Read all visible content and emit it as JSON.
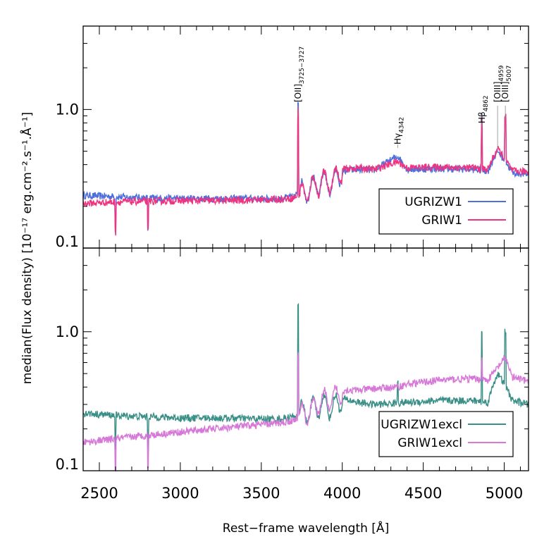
{
  "chart_data": {
    "type": "line",
    "shared_axes": {
      "xlabel": "Rest−frame wavelength [Å]",
      "ylabel": "median(Flux density) [10⁻¹⁷ erg.cm⁻².s⁻¹.Å⁻¹]",
      "xlim": [
        2400,
        5150
      ],
      "ylim": [
        0.1,
        4.0
      ],
      "yscale": "log",
      "x_ticks": [
        "2500",
        "3000",
        "3500",
        "4000",
        "4500",
        "5000"
      ],
      "y_ticks": [
        "0.1",
        "1.0"
      ]
    },
    "panels": [
      {
        "id": "top",
        "legend_placement": "lower-right",
        "series": [
          {
            "name": "UGRIZW1",
            "color": "#4e6fdc",
            "points": [
              [
                2400,
                0.24
              ],
              [
                2600,
                0.235
              ],
              [
                2800,
                0.23
              ],
              [
                3000,
                0.228
              ],
              [
                3200,
                0.228
              ],
              [
                3400,
                0.228
              ],
              [
                3600,
                0.226
              ],
              [
                3700,
                0.235
              ],
              [
                3727,
                1.15
              ],
              [
                3760,
                0.26
              ],
              [
                3800,
                0.27
              ],
              [
                3870,
                0.3
              ],
              [
                3950,
                0.3
              ],
              [
                4000,
                0.36
              ],
              [
                4100,
                0.37
              ],
              [
                4200,
                0.365
              ],
              [
                4342,
                0.46
              ],
              [
                4400,
                0.37
              ],
              [
                4600,
                0.375
              ],
              [
                4800,
                0.37
              ],
              [
                4862,
                0.88
              ],
              [
                4900,
                0.36
              ],
              [
                4959,
                0.5
              ],
              [
                5007,
                0.92
              ],
              [
                5050,
                0.35
              ],
              [
                5150,
                0.34
              ]
            ]
          },
          {
            "name": "GRIW1",
            "color": "#f0327f",
            "points": [
              [
                2400,
                0.21
              ],
              [
                2600,
                0.215
              ],
              [
                2800,
                0.218
              ],
              [
                3000,
                0.22
              ],
              [
                3200,
                0.22
              ],
              [
                3400,
                0.222
              ],
              [
                3600,
                0.225
              ],
              [
                3700,
                0.23
              ],
              [
                3727,
                1.0
              ],
              [
                3760,
                0.25
              ],
              [
                3800,
                0.27
              ],
              [
                3870,
                0.3
              ],
              [
                3950,
                0.31
              ],
              [
                4000,
                0.37
              ],
              [
                4100,
                0.38
              ],
              [
                4200,
                0.37
              ],
              [
                4342,
                0.42
              ],
              [
                4400,
                0.38
              ],
              [
                4600,
                0.385
              ],
              [
                4800,
                0.38
              ],
              [
                4862,
                0.85
              ],
              [
                4900,
                0.37
              ],
              [
                4959,
                0.52
              ],
              [
                5007,
                0.88
              ],
              [
                5050,
                0.36
              ],
              [
                5150,
                0.355
              ]
            ]
          }
        ]
      },
      {
        "id": "bottom",
        "legend_placement": "lower-right",
        "series": [
          {
            "name": "UGRIZW1excl",
            "color": "#3a8f87",
            "points": [
              [
                2400,
                0.26
              ],
              [
                2600,
                0.25
              ],
              [
                2800,
                0.245
              ],
              [
                3000,
                0.24
              ],
              [
                3200,
                0.24
              ],
              [
                3400,
                0.238
              ],
              [
                3600,
                0.235
              ],
              [
                3700,
                0.245
              ],
              [
                3727,
                1.5
              ],
              [
                3760,
                0.27
              ],
              [
                3800,
                0.27
              ],
              [
                3870,
                0.3
              ],
              [
                3950,
                0.29
              ],
              [
                4000,
                0.33
              ],
              [
                4100,
                0.31
              ],
              [
                4200,
                0.3
              ],
              [
                4342,
                0.45
              ],
              [
                4400,
                0.31
              ],
              [
                4600,
                0.32
              ],
              [
                4800,
                0.32
              ],
              [
                4862,
                1.0
              ],
              [
                4900,
                0.31
              ],
              [
                4959,
                0.5
              ],
              [
                5007,
                1.0
              ],
              [
                5050,
                0.32
              ],
              [
                5150,
                0.3
              ]
            ]
          },
          {
            "name": "GRIW1excl",
            "color": "#d678d8",
            "points": [
              [
                2400,
                0.16
              ],
              [
                2600,
                0.17
              ],
              [
                2800,
                0.18
              ],
              [
                3000,
                0.19
              ],
              [
                3200,
                0.2
              ],
              [
                3400,
                0.21
              ],
              [
                3600,
                0.22
              ],
              [
                3700,
                0.23
              ],
              [
                3727,
                0.68
              ],
              [
                3760,
                0.26
              ],
              [
                3800,
                0.27
              ],
              [
                3870,
                0.32
              ],
              [
                3950,
                0.33
              ],
              [
                4000,
                0.38
              ],
              [
                4100,
                0.38
              ],
              [
                4200,
                0.39
              ],
              [
                4342,
                0.4
              ],
              [
                4400,
                0.42
              ],
              [
                4600,
                0.45
              ],
              [
                4800,
                0.46
              ],
              [
                4862,
                0.65
              ],
              [
                4900,
                0.45
              ],
              [
                4959,
                0.55
              ],
              [
                5007,
                0.65
              ],
              [
                5050,
                0.47
              ],
              [
                5150,
                0.44
              ]
            ]
          }
        ]
      }
    ],
    "annotations": [
      {
        "base": "[OII]",
        "sub": "3725−3727",
        "x": 3727
      },
      {
        "base": "Hγ",
        "sub": "4342",
        "x": 4342
      },
      {
        "base": "Hβ",
        "sub": "4862",
        "x": 4862
      },
      {
        "base": "[OIII]",
        "sub": "4959",
        "x": 4959
      },
      {
        "base": "[OIII]",
        "sub": "5007",
        "x": 5007
      }
    ]
  }
}
